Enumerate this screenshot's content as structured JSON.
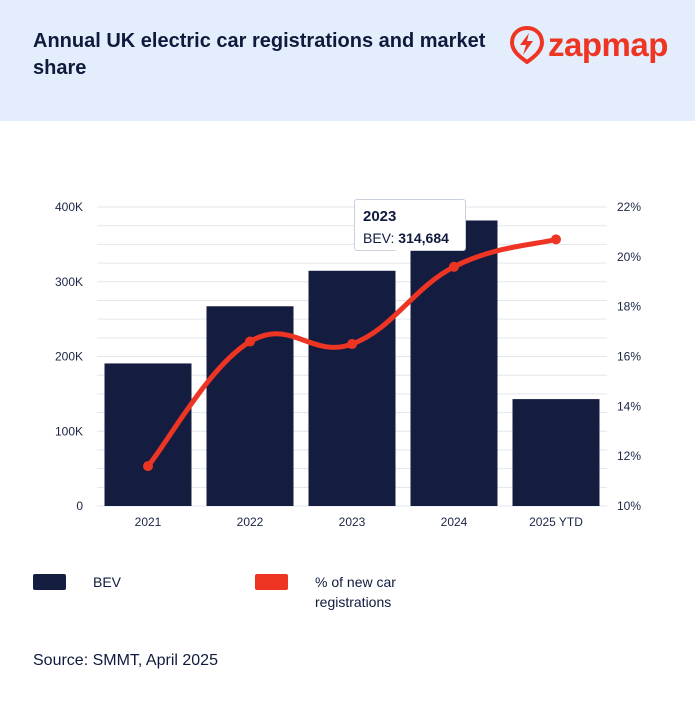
{
  "header": {
    "title": "Annual UK electric car registrations and market share",
    "logo_text": "zapmap"
  },
  "colors": {
    "header_bg": "#e4edfb",
    "bar": "#141d3f",
    "line": "#ee3524",
    "brand": "#ee3524"
  },
  "chart_data": {
    "type": "bar",
    "title": "Annual UK electric car registrations and market share",
    "categories": [
      "2021",
      "2022",
      "2023",
      "2024",
      "2025 YTD"
    ],
    "series": [
      {
        "name": "BEV",
        "type": "bar",
        "axis": "left",
        "values": [
          190727,
          267203,
          314684,
          381970,
          143000
        ]
      },
      {
        "name": "% of new car registrations",
        "type": "line",
        "axis": "right",
        "values": [
          11.6,
          16.6,
          16.5,
          19.6,
          20.7
        ]
      }
    ],
    "y_left": {
      "min": 0,
      "max": 400000,
      "ticks": [
        "0",
        "100K",
        "200K",
        "300K",
        "400K"
      ],
      "tick_values": [
        0,
        100000,
        200000,
        300000,
        400000
      ]
    },
    "y_right": {
      "min": 10,
      "max": 22,
      "ticks": [
        "10%",
        "12%",
        "14%",
        "16%",
        "18%",
        "20%",
        "22%"
      ],
      "tick_values": [
        10,
        12,
        14,
        16,
        18,
        20,
        22
      ]
    },
    "grid": true,
    "legend_position": "bottom-left",
    "tooltip": {
      "category": "2023",
      "label": "BEV:",
      "value": "314,684"
    }
  },
  "legend": {
    "bev_label": "BEV",
    "share_label": "% of new car registrations"
  },
  "source": "Source: SMMT, April 2025"
}
